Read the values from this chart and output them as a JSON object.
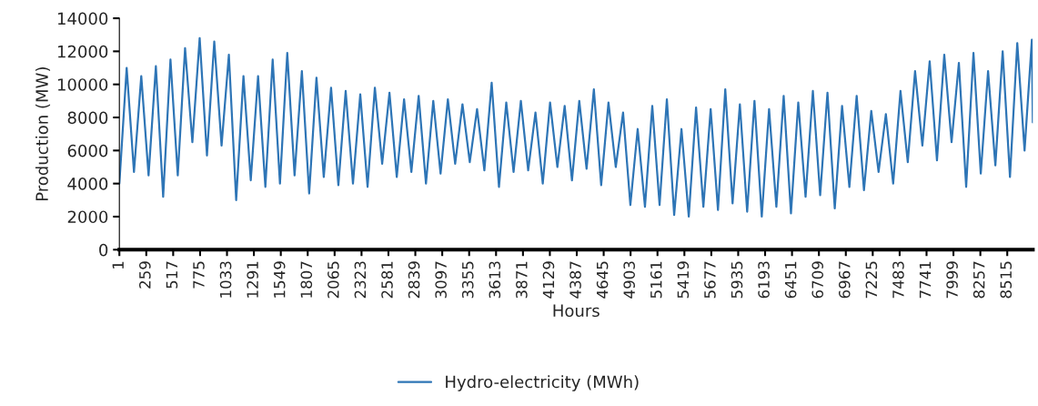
{
  "chart_data": {
    "type": "line",
    "xlabel": "Hours",
    "ylabel": "Production (MW)",
    "x": [
      1,
      71,
      141,
      211,
      281,
      351,
      421,
      491,
      561,
      631,
      701,
      771,
      841,
      911,
      981,
      1051,
      1121,
      1191,
      1261,
      1331,
      1401,
      1471,
      1541,
      1611,
      1681,
      1751,
      1821,
      1891,
      1961,
      2031,
      2101,
      2171,
      2241,
      2311,
      2381,
      2451,
      2521,
      2591,
      2661,
      2731,
      2801,
      2871,
      2941,
      3011,
      3081,
      3151,
      3221,
      3291,
      3361,
      3431,
      3501,
      3571,
      3641,
      3711,
      3781,
      3851,
      3921,
      3991,
      4061,
      4131,
      4201,
      4271,
      4341,
      4411,
      4481,
      4551,
      4621,
      4691,
      4761,
      4831,
      4901,
      4971,
      5041,
      5111,
      5181,
      5251,
      5321,
      5391,
      5461,
      5531,
      5601,
      5671,
      5741,
      5811,
      5881,
      5951,
      6021,
      6091,
      6161,
      6231,
      6301,
      6371,
      6441,
      6511,
      6581,
      6651,
      6721,
      6791,
      6861,
      6931,
      7001,
      7071,
      7141,
      7211,
      7281,
      7351,
      7421,
      7491,
      7561,
      7631,
      7701,
      7771,
      7841,
      7911,
      7981,
      8051,
      8121,
      8191,
      8261,
      8331,
      8401,
      8471,
      8541,
      8611,
      8681,
      8751,
      8760
    ],
    "series": [
      {
        "name": "Hydro-electricity (MWh)",
        "color": "#2e75b6",
        "values": [
          4000,
          11000,
          4700,
          10500,
          4500,
          11100,
          3200,
          11500,
          4500,
          12200,
          6500,
          12800,
          5700,
          12600,
          6300,
          11800,
          3000,
          10500,
          4200,
          10500,
          3800,
          11500,
          4000,
          11900,
          4500,
          10800,
          3400,
          10400,
          4400,
          9800,
          3900,
          9600,
          4000,
          9400,
          3800,
          9800,
          5200,
          9500,
          4400,
          9100,
          4700,
          9300,
          4000,
          9000,
          4600,
          9100,
          5200,
          8800,
          5300,
          8500,
          4800,
          10100,
          3800,
          8900,
          4700,
          9000,
          4800,
          8300,
          4000,
          8900,
          5000,
          8700,
          4200,
          9000,
          4900,
          9700,
          3900,
          8900,
          5000,
          8300,
          2700,
          7300,
          2600,
          8700,
          2700,
          9100,
          2100,
          7300,
          2000,
          8600,
          2600,
          8500,
          2400,
          9700,
          2800,
          8800,
          2300,
          9000,
          2000,
          8500,
          2600,
          9300,
          2200,
          8900,
          3200,
          9600,
          3300,
          9500,
          2500,
          8700,
          3800,
          9300,
          3600,
          8400,
          4700,
          8200,
          4000,
          9600,
          5300,
          10800,
          6300,
          11400,
          5400,
          11800,
          6500,
          11300,
          3800,
          11900,
          4600,
          10800,
          5100,
          12000,
          4400,
          12500,
          6000,
          12700,
          7700
        ]
      }
    ],
    "xlim": [
      1,
      8760
    ],
    "xticks": [
      1,
      259,
      517,
      775,
      1033,
      1291,
      1549,
      1807,
      2065,
      2323,
      2581,
      2839,
      3097,
      3355,
      3613,
      3871,
      4129,
      4387,
      4645,
      4903,
      5161,
      5419,
      5677,
      5935,
      6193,
      6451,
      6709,
      6967,
      7225,
      7483,
      7741,
      7999,
      8257,
      8515
    ],
    "ylim": [
      0,
      14000
    ],
    "yticks": [
      0,
      2000,
      4000,
      6000,
      8000,
      10000,
      12000,
      14000
    ],
    "grid": false,
    "legend": "bottom",
    "marker": "none",
    "line_style": "solid"
  }
}
